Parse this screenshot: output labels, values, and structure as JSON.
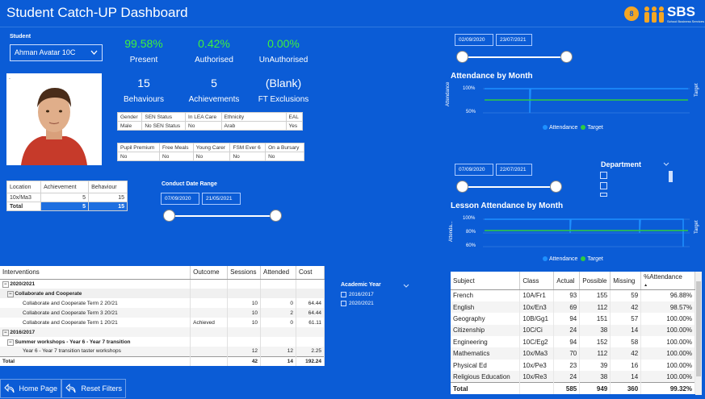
{
  "header": {
    "title": "Student Catch-UP Dashboard",
    "logo_text": "SBS",
    "logo_sub": "School Business Services",
    "avatar_initial": "8"
  },
  "student": {
    "label": "Student",
    "selected": "Ahman Avatar 10C",
    "photo_caption": "."
  },
  "kpis": [
    {
      "value": "99.58%",
      "label": "Present"
    },
    {
      "value": "0.42%",
      "label": "Authorised"
    },
    {
      "value": "0.00%",
      "label": "UnAuthorised"
    },
    {
      "value": "15",
      "label": "Behaviours"
    },
    {
      "value": "5",
      "label": "Achievements"
    },
    {
      "value": "(Blank)",
      "label": "FT Exclusions"
    }
  ],
  "profile_table": {
    "headers": [
      "Gender",
      "SEN Status",
      "In LEA Care",
      "Ethnicity",
      "EAL"
    ],
    "values": [
      "Male",
      "No SEN Status",
      "No",
      "Arab",
      "Yes"
    ]
  },
  "flags_table": {
    "headers": [
      "Pupil Premium",
      "Free Meals",
      "Young Carer",
      "FSM Ever 6",
      "On a Bursary"
    ],
    "values": [
      "No",
      "No",
      "No",
      "No",
      "No"
    ]
  },
  "location_table": {
    "headers": [
      "Location",
      "Achievement",
      "Behaviour"
    ],
    "rows": [
      [
        "10x/Ma3",
        "5",
        "15"
      ]
    ],
    "total": [
      "Total",
      "5",
      "15"
    ]
  },
  "conduct": {
    "label": "Conduct Date Range",
    "start": "07/09/2020",
    "end": "21/05/2021"
  },
  "attendance_chart": {
    "start": "02/09/2020",
    "end": "23/07/2021",
    "title": "Attendance by Month",
    "y_label": "Attendance",
    "y_right": "Target",
    "y_ticks": [
      "100%",
      "50%"
    ],
    "legend": [
      "Attendance",
      "Target"
    ],
    "colors": {
      "attendance": "#1e90ff",
      "target": "#2ecc40"
    }
  },
  "lesson_chart": {
    "start": "07/09/2020",
    "end": "22/07/2021",
    "title": "Lesson Attendance by Month",
    "y_label": "Attenda...",
    "y_right": "Target",
    "y_ticks": [
      "100%",
      "80%",
      "60%"
    ],
    "legend": [
      "Attendance",
      "Target"
    ]
  },
  "department": {
    "label": "Department"
  },
  "academic_year": {
    "label": "Academic Year",
    "options": [
      "2016/2017",
      "2020/2021"
    ]
  },
  "interventions": {
    "headers": [
      "Interventions",
      "Outcome",
      "Sessions",
      "Attended",
      "Cost"
    ],
    "rows": [
      {
        "name": "2020/2021",
        "level": 0,
        "outcome": "",
        "sessions": "",
        "attended": "",
        "cost": ""
      },
      {
        "name": "Collaborate and Cooperate",
        "level": 1,
        "outcome": "",
        "sessions": "",
        "attended": "",
        "cost": ""
      },
      {
        "name": "Collaborate and Cooperate Term 2 20/21",
        "level": 2,
        "outcome": "",
        "sessions": "10",
        "attended": "0",
        "cost": "64.44"
      },
      {
        "name": "Collaborate and Cooperate Term 3 20/21",
        "level": 2,
        "outcome": "",
        "sessions": "10",
        "attended": "2",
        "cost": "64.44"
      },
      {
        "name": "Collaborate and Cooperate Term 1 20/21",
        "level": 2,
        "outcome": "Achieved",
        "sessions": "10",
        "attended": "0",
        "cost": "61.11"
      },
      {
        "name": "2016/2017",
        "level": 0,
        "outcome": "",
        "sessions": "",
        "attended": "",
        "cost": ""
      },
      {
        "name": "Summer workshops - Year 6 - Year 7 transition",
        "level": 1,
        "outcome": "",
        "sessions": "",
        "attended": "",
        "cost": ""
      },
      {
        "name": "Year 6 - Year 7 transition taster workshops",
        "level": 2,
        "outcome": "",
        "sessions": "12",
        "attended": "12",
        "cost": "2.25"
      }
    ],
    "total": [
      "Total",
      "",
      "42",
      "14",
      "192.24"
    ]
  },
  "subjects": {
    "headers": [
      "Subject",
      "Class",
      "Actual",
      "Possible",
      "Missing",
      "%Attendance"
    ],
    "rows": [
      [
        "French",
        "10A/Fr1",
        "93",
        "155",
        "59",
        "96.88%"
      ],
      [
        "English",
        "10x/En3",
        "69",
        "112",
        "42",
        "98.57%"
      ],
      [
        "Geography",
        "10B/Gg1",
        "94",
        "151",
        "57",
        "100.00%"
      ],
      [
        "Citizenship",
        "10C/Ci",
        "24",
        "38",
        "14",
        "100.00%"
      ],
      [
        "Engineering",
        "10C/Eg2",
        "94",
        "152",
        "58",
        "100.00%"
      ],
      [
        "Mathematics",
        "10x/Ma3",
        "70",
        "112",
        "42",
        "100.00%"
      ],
      [
        "Physical Ed",
        "10x/Pe3",
        "23",
        "39",
        "16",
        "100.00%"
      ],
      [
        "Religious Education",
        "10x/Re3",
        "24",
        "38",
        "14",
        "100.00%"
      ]
    ],
    "total": [
      "Total",
      "",
      "585",
      "949",
      "360",
      "99.32%"
    ]
  },
  "buttons": {
    "home": "Home Page",
    "reset": "Reset Filters"
  }
}
